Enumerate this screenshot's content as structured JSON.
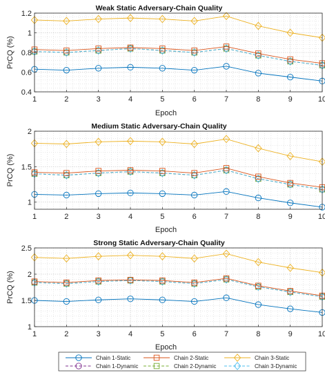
{
  "chart_data": [
    {
      "type": "line",
      "title": "Weak Static Adversary-Chain Quality",
      "xlabel": "Epoch",
      "ylabel": "PrCQ (%)",
      "x": [
        1,
        2,
        3,
        4,
        5,
        6,
        7,
        8,
        9,
        10
      ],
      "xticks": [
        "1",
        "2",
        "3",
        "4",
        "5",
        "6",
        "7",
        "8",
        "9",
        "10"
      ],
      "ylim": [
        0.4,
        1.2
      ],
      "yticks": [
        "0.4",
        "0.6",
        "0.8",
        "1",
        "1.2"
      ],
      "ytick_values": [
        0.4,
        0.6,
        0.8,
        1.0,
        1.2
      ],
      "grid": true,
      "series": [
        {
          "name": "Chain 1-Static",
          "values": [
            0.63,
            0.62,
            0.64,
            0.65,
            0.64,
            0.62,
            0.66,
            0.59,
            0.55,
            0.51
          ]
        },
        {
          "name": "Chain 2-Static",
          "values": [
            0.83,
            0.82,
            0.84,
            0.85,
            0.84,
            0.82,
            0.86,
            0.79,
            0.73,
            0.69
          ]
        },
        {
          "name": "Chain 3-Static",
          "values": [
            1.13,
            1.12,
            1.14,
            1.15,
            1.14,
            1.12,
            1.17,
            1.07,
            1.0,
            0.95
          ]
        },
        {
          "name": "Chain 1-Dynamic",
          "values": [
            0.81,
            0.8,
            0.82,
            0.84,
            0.82,
            0.8,
            0.84,
            0.77,
            0.71,
            0.67
          ]
        },
        {
          "name": "Chain 2-Dynamic",
          "values": [
            0.81,
            0.8,
            0.82,
            0.84,
            0.82,
            0.8,
            0.84,
            0.77,
            0.71,
            0.67
          ]
        },
        {
          "name": "Chain 3-Dynamic",
          "values": [
            0.81,
            0.8,
            0.82,
            0.84,
            0.82,
            0.8,
            0.84,
            0.77,
            0.71,
            0.67
          ]
        }
      ]
    },
    {
      "type": "line",
      "title": "Medium Static Adversary-Chain Quality",
      "xlabel": "Epoch",
      "ylabel": "PrCQ (%)",
      "x": [
        1,
        2,
        3,
        4,
        5,
        6,
        7,
        8,
        9,
        10
      ],
      "xticks": [
        "1",
        "2",
        "3",
        "4",
        "5",
        "6",
        "7",
        "8",
        "9",
        "10"
      ],
      "ylim": [
        0.9,
        2.0
      ],
      "yticks": [
        "1",
        "1.5",
        "2"
      ],
      "ytick_values": [
        1.0,
        1.5,
        2.0
      ],
      "grid": true,
      "series": [
        {
          "name": "Chain 1-Static",
          "values": [
            1.11,
            1.1,
            1.12,
            1.13,
            1.12,
            1.1,
            1.15,
            1.06,
            0.99,
            0.93
          ]
        },
        {
          "name": "Chain 2-Static",
          "values": [
            1.42,
            1.41,
            1.44,
            1.45,
            1.44,
            1.41,
            1.48,
            1.36,
            1.27,
            1.21
          ]
        },
        {
          "name": "Chain 3-Static",
          "values": [
            1.83,
            1.82,
            1.85,
            1.86,
            1.85,
            1.82,
            1.89,
            1.76,
            1.65,
            1.57
          ]
        },
        {
          "name": "Chain 1-Dynamic",
          "values": [
            1.4,
            1.38,
            1.41,
            1.43,
            1.41,
            1.38,
            1.45,
            1.33,
            1.25,
            1.18
          ]
        },
        {
          "name": "Chain 2-Dynamic",
          "values": [
            1.4,
            1.38,
            1.41,
            1.43,
            1.41,
            1.38,
            1.45,
            1.33,
            1.25,
            1.18
          ]
        },
        {
          "name": "Chain 3-Dynamic",
          "values": [
            1.4,
            1.38,
            1.41,
            1.43,
            1.41,
            1.38,
            1.45,
            1.33,
            1.25,
            1.18
          ]
        }
      ]
    },
    {
      "type": "line",
      "title": "Strong Static Adversary-Chain Quality",
      "xlabel": "Epoch",
      "ylabel": "PrCQ (%)",
      "x": [
        1,
        2,
        3,
        4,
        5,
        6,
        7,
        8,
        9,
        10
      ],
      "xticks": [
        "1",
        "2",
        "3",
        "4",
        "5",
        "6",
        "7",
        "8",
        "9",
        "10"
      ],
      "ylim": [
        1.0,
        2.5
      ],
      "yticks": [
        "1",
        "1.5",
        "2",
        "2.5"
      ],
      "ytick_values": [
        1.0,
        1.5,
        2.0,
        2.5
      ],
      "grid": true,
      "series": [
        {
          "name": "Chain 1-Static",
          "values": [
            1.5,
            1.48,
            1.51,
            1.53,
            1.51,
            1.48,
            1.55,
            1.42,
            1.34,
            1.27
          ]
        },
        {
          "name": "Chain 2-Static",
          "values": [
            1.86,
            1.84,
            1.88,
            1.89,
            1.88,
            1.84,
            1.92,
            1.78,
            1.68,
            1.59
          ]
        },
        {
          "name": "Chain 3-Static",
          "values": [
            2.32,
            2.3,
            2.34,
            2.36,
            2.34,
            2.3,
            2.39,
            2.23,
            2.12,
            2.03
          ]
        },
        {
          "name": "Chain 1-Dynamic",
          "values": [
            1.84,
            1.82,
            1.86,
            1.88,
            1.86,
            1.82,
            1.9,
            1.76,
            1.66,
            1.57
          ]
        },
        {
          "name": "Chain 2-Dynamic",
          "values": [
            1.84,
            1.82,
            1.86,
            1.88,
            1.86,
            1.82,
            1.9,
            1.76,
            1.66,
            1.57
          ]
        },
        {
          "name": "Chain 3-Dynamic",
          "values": [
            1.84,
            1.82,
            1.86,
            1.88,
            1.86,
            1.82,
            1.9,
            1.76,
            1.66,
            1.57
          ]
        }
      ]
    }
  ],
  "series_styles": [
    {
      "color": "#0072BD",
      "dash": "solid",
      "marker": "circle"
    },
    {
      "color": "#D95319",
      "dash": "solid",
      "marker": "square"
    },
    {
      "color": "#EDB120",
      "dash": "solid",
      "marker": "diamond"
    },
    {
      "color": "#7E2F8E",
      "dash": "dashed",
      "marker": "circle"
    },
    {
      "color": "#77AC30",
      "dash": "dashed",
      "marker": "square"
    },
    {
      "color": "#4DBEEE",
      "dash": "dashed",
      "marker": "diamond"
    }
  ],
  "legend": {
    "placement": "bottom",
    "entries": [
      "Chain 1-Static",
      "Chain 2-Static",
      "Chain 3-Static",
      "Chain 1-Dynamic",
      "Chain 2-Dynamic",
      "Chain 3-Dynamic"
    ]
  }
}
